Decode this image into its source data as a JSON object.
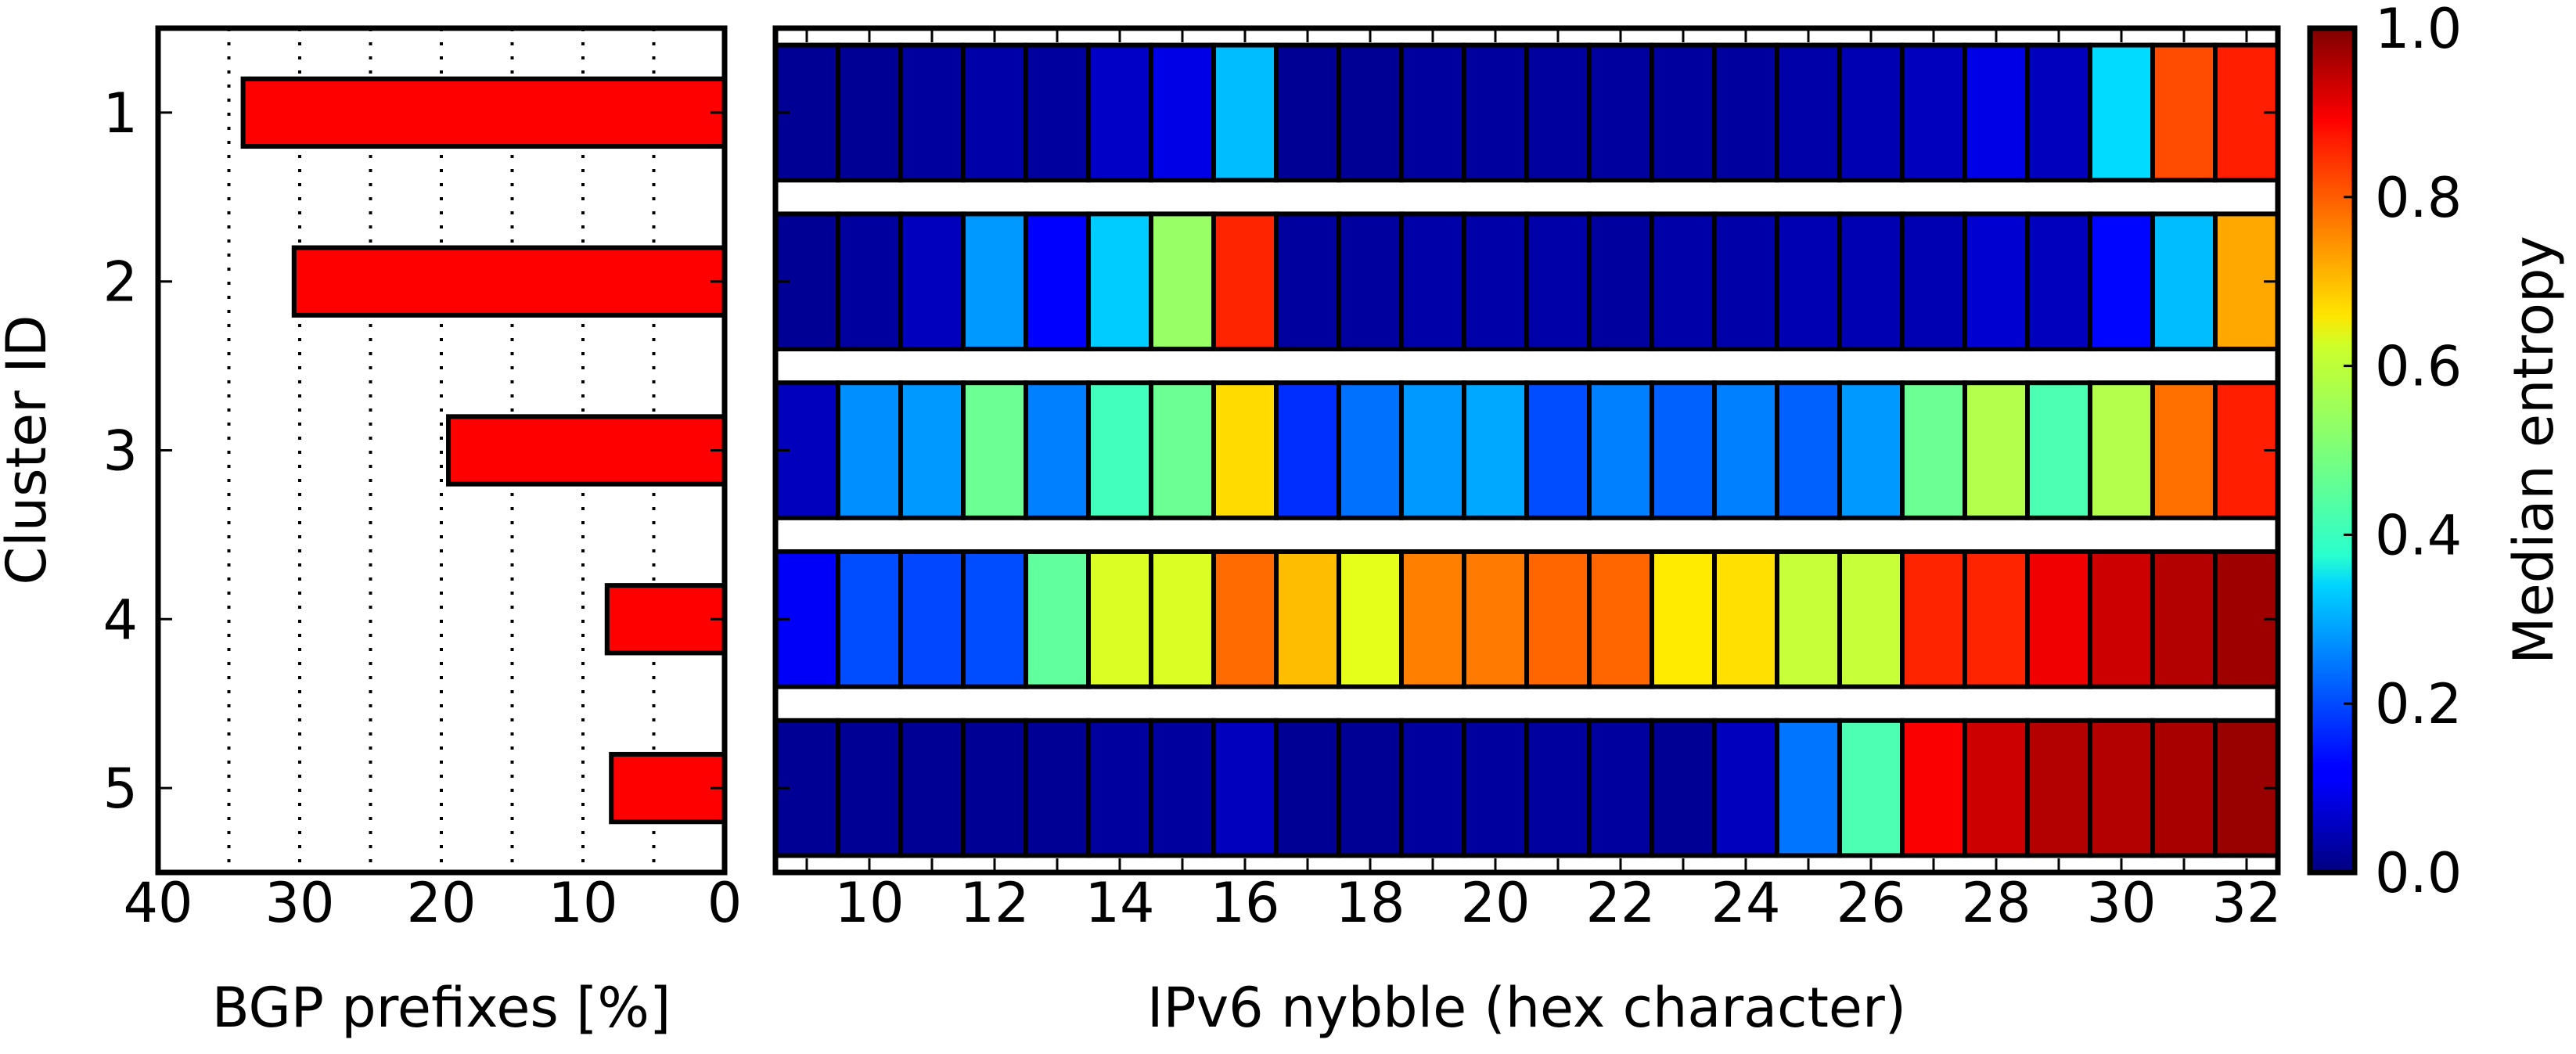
{
  "chart_data": [
    {
      "type": "bar",
      "orientation": "horizontal",
      "xlabel": "BGP prefixes [%]",
      "ylabel": "Cluster ID",
      "xlim": [
        40,
        0
      ],
      "xticks": [
        "40",
        "30",
        "20",
        "10",
        "0"
      ],
      "xtick_values": [
        40,
        30,
        20,
        10,
        0
      ],
      "grid": "vertical dotted every 5",
      "categories": [
        "1",
        "2",
        "3",
        "4",
        "5"
      ],
      "values": [
        34.0,
        30.4,
        19.5,
        8.3,
        8.0
      ],
      "bar_color": "#ff0000"
    },
    {
      "type": "heatmap",
      "xlabel": "IPv6 nybble (hex character)",
      "x": [
        9,
        10,
        11,
        12,
        13,
        14,
        15,
        16,
        17,
        18,
        19,
        20,
        21,
        22,
        23,
        24,
        25,
        26,
        27,
        28,
        29,
        30,
        31,
        32
      ],
      "xticks": [
        "10",
        "12",
        "14",
        "16",
        "18",
        "20",
        "22",
        "24",
        "26",
        "28",
        "30",
        "32"
      ],
      "xtick_values": [
        10,
        12,
        14,
        16,
        18,
        20,
        22,
        24,
        26,
        28,
        30,
        32
      ],
      "rows": [
        "1",
        "2",
        "3",
        "4",
        "5"
      ],
      "colormap": "jet",
      "values": [
        [
          0.02,
          0.02,
          0.03,
          0.04,
          0.03,
          0.07,
          0.1,
          0.31,
          0.02,
          0.02,
          0.03,
          0.03,
          0.03,
          0.03,
          0.03,
          0.03,
          0.04,
          0.05,
          0.06,
          0.1,
          0.06,
          0.34,
          0.8,
          0.845
        ],
        [
          0.02,
          0.03,
          0.06,
          0.275,
          0.125,
          0.325,
          0.525,
          0.84,
          0.03,
          0.03,
          0.04,
          0.04,
          0.04,
          0.03,
          0.04,
          0.04,
          0.05,
          0.05,
          0.05,
          0.08,
          0.06,
          0.13,
          0.31,
          0.71
        ],
        [
          0.06,
          0.265,
          0.275,
          0.48,
          0.25,
          0.44,
          0.48,
          0.66,
          0.17,
          0.235,
          0.275,
          0.29,
          0.2,
          0.25,
          0.22,
          0.25,
          0.22,
          0.275,
          0.48,
          0.55,
          0.45,
          0.55,
          0.765,
          0.845
        ],
        [
          0.12,
          0.2,
          0.195,
          0.2,
          0.47,
          0.59,
          0.59,
          0.77,
          0.69,
          0.6,
          0.75,
          0.755,
          0.775,
          0.775,
          0.645,
          0.655,
          0.57,
          0.57,
          0.84,
          0.84,
          0.89,
          0.925,
          0.95,
          0.97
        ],
        [
          0.02,
          0.02,
          0.02,
          0.02,
          0.02,
          0.03,
          0.03,
          0.06,
          0.02,
          0.02,
          0.03,
          0.03,
          0.03,
          0.03,
          0.02,
          0.06,
          0.24,
          0.45,
          0.88,
          0.925,
          0.95,
          0.95,
          0.96,
          0.975
        ]
      ]
    },
    {
      "type": "colorbar",
      "label": "Median entropy",
      "range": [
        0.0,
        1.0
      ],
      "ticks": [
        "0.0",
        "0.2",
        "0.4",
        "0.6",
        "0.8",
        "1.0"
      ],
      "tick_values": [
        0.0,
        0.2,
        0.4,
        0.6,
        0.8,
        1.0
      ]
    }
  ]
}
